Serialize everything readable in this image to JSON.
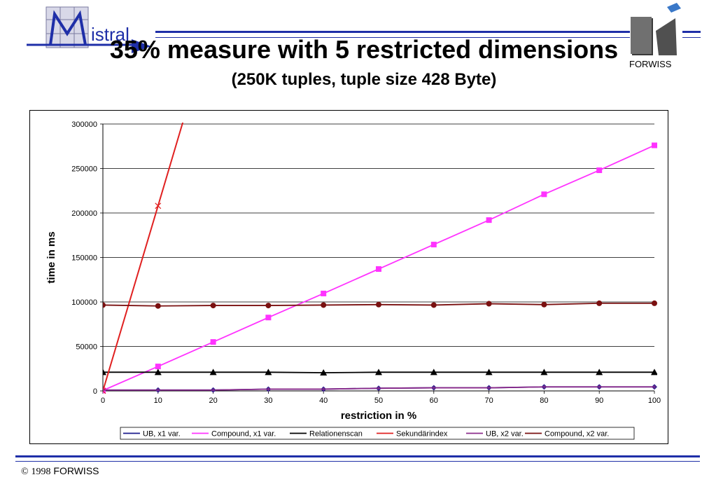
{
  "header": {
    "title": "35% measure with 5 restricted dimensions",
    "subtitle": "(250K tuples, tuple size 428 Byte)",
    "logo_left_text": "istral",
    "logo_right_text": "FORWISS"
  },
  "footer": {
    "copyright_symbol": "©",
    "year": "1998",
    "org": "FORWISS"
  },
  "colors": {
    "rule": "#1f2fa8",
    "ub_x1": "#1a1a8c",
    "compound_x1": "#ff33ff",
    "relationenscan": "#000000",
    "sekundarindex": "#e02020",
    "ub_x2": "#8b2b8b",
    "compound_x2": "#7a1010"
  },
  "chart_data": {
    "type": "line",
    "xlabel": "restriction in %",
    "ylabel": "time in ms",
    "xlim": [
      0,
      100
    ],
    "ylim": [
      0,
      300000
    ],
    "x_ticks": [
      "0",
      "10",
      "20",
      "30",
      "40",
      "50",
      "60",
      "70",
      "80",
      "90",
      "100"
    ],
    "y_ticks": [
      "0",
      "50000",
      "100000",
      "150000",
      "200000",
      "250000",
      "300000"
    ],
    "grid": true,
    "legend_position": "bottom",
    "series": [
      {
        "name": "UB, x1 var.",
        "marker": "diamond",
        "color": "#1a1a8c",
        "x": [
          0,
          10,
          20,
          30,
          40,
          50,
          60,
          70,
          80,
          90,
          100
        ],
        "y": [
          1000,
          1000,
          1000,
          2000,
          2000,
          3000,
          3500,
          3500,
          4500,
          4500,
          4500
        ]
      },
      {
        "name": "Compound, x1 var.",
        "marker": "square",
        "color": "#ff33ff",
        "x": [
          0,
          10,
          20,
          30,
          40,
          50,
          60,
          70,
          80,
          90,
          100
        ],
        "y": [
          500,
          27500,
          55000,
          82500,
          109500,
          137000,
          164500,
          192000,
          221000,
          248000,
          276000
        ]
      },
      {
        "name": "Relationenscan",
        "marker": "triangle",
        "color": "#000000",
        "x": [
          0,
          10,
          20,
          30,
          40,
          50,
          60,
          70,
          80,
          90,
          100
        ],
        "y": [
          21000,
          21000,
          21000,
          21000,
          20500,
          21000,
          21000,
          21000,
          21000,
          21000,
          21000
        ]
      },
      {
        "name": "Sekundärindex",
        "marker": "x",
        "color": "#e02020",
        "x": [
          0,
          10,
          14.5
        ],
        "y": [
          0,
          208000,
          302000
        ]
      },
      {
        "name": "UB, x2 var.",
        "marker": "star",
        "color": "#8b2b8b",
        "x": [
          0,
          10,
          20,
          30,
          40,
          50,
          60,
          70,
          80,
          90,
          100
        ],
        "y": [
          1000,
          1000,
          1000,
          2000,
          2000,
          3000,
          3500,
          3500,
          4500,
          4500,
          4500
        ]
      },
      {
        "name": "Compound, x2 var.",
        "marker": "circle",
        "color": "#7a1010",
        "x": [
          0,
          10,
          20,
          30,
          40,
          50,
          60,
          70,
          80,
          90,
          100
        ],
        "y": [
          96500,
          95500,
          96000,
          96000,
          96500,
          97000,
          96500,
          98000,
          97000,
          98500,
          98500
        ]
      }
    ]
  }
}
